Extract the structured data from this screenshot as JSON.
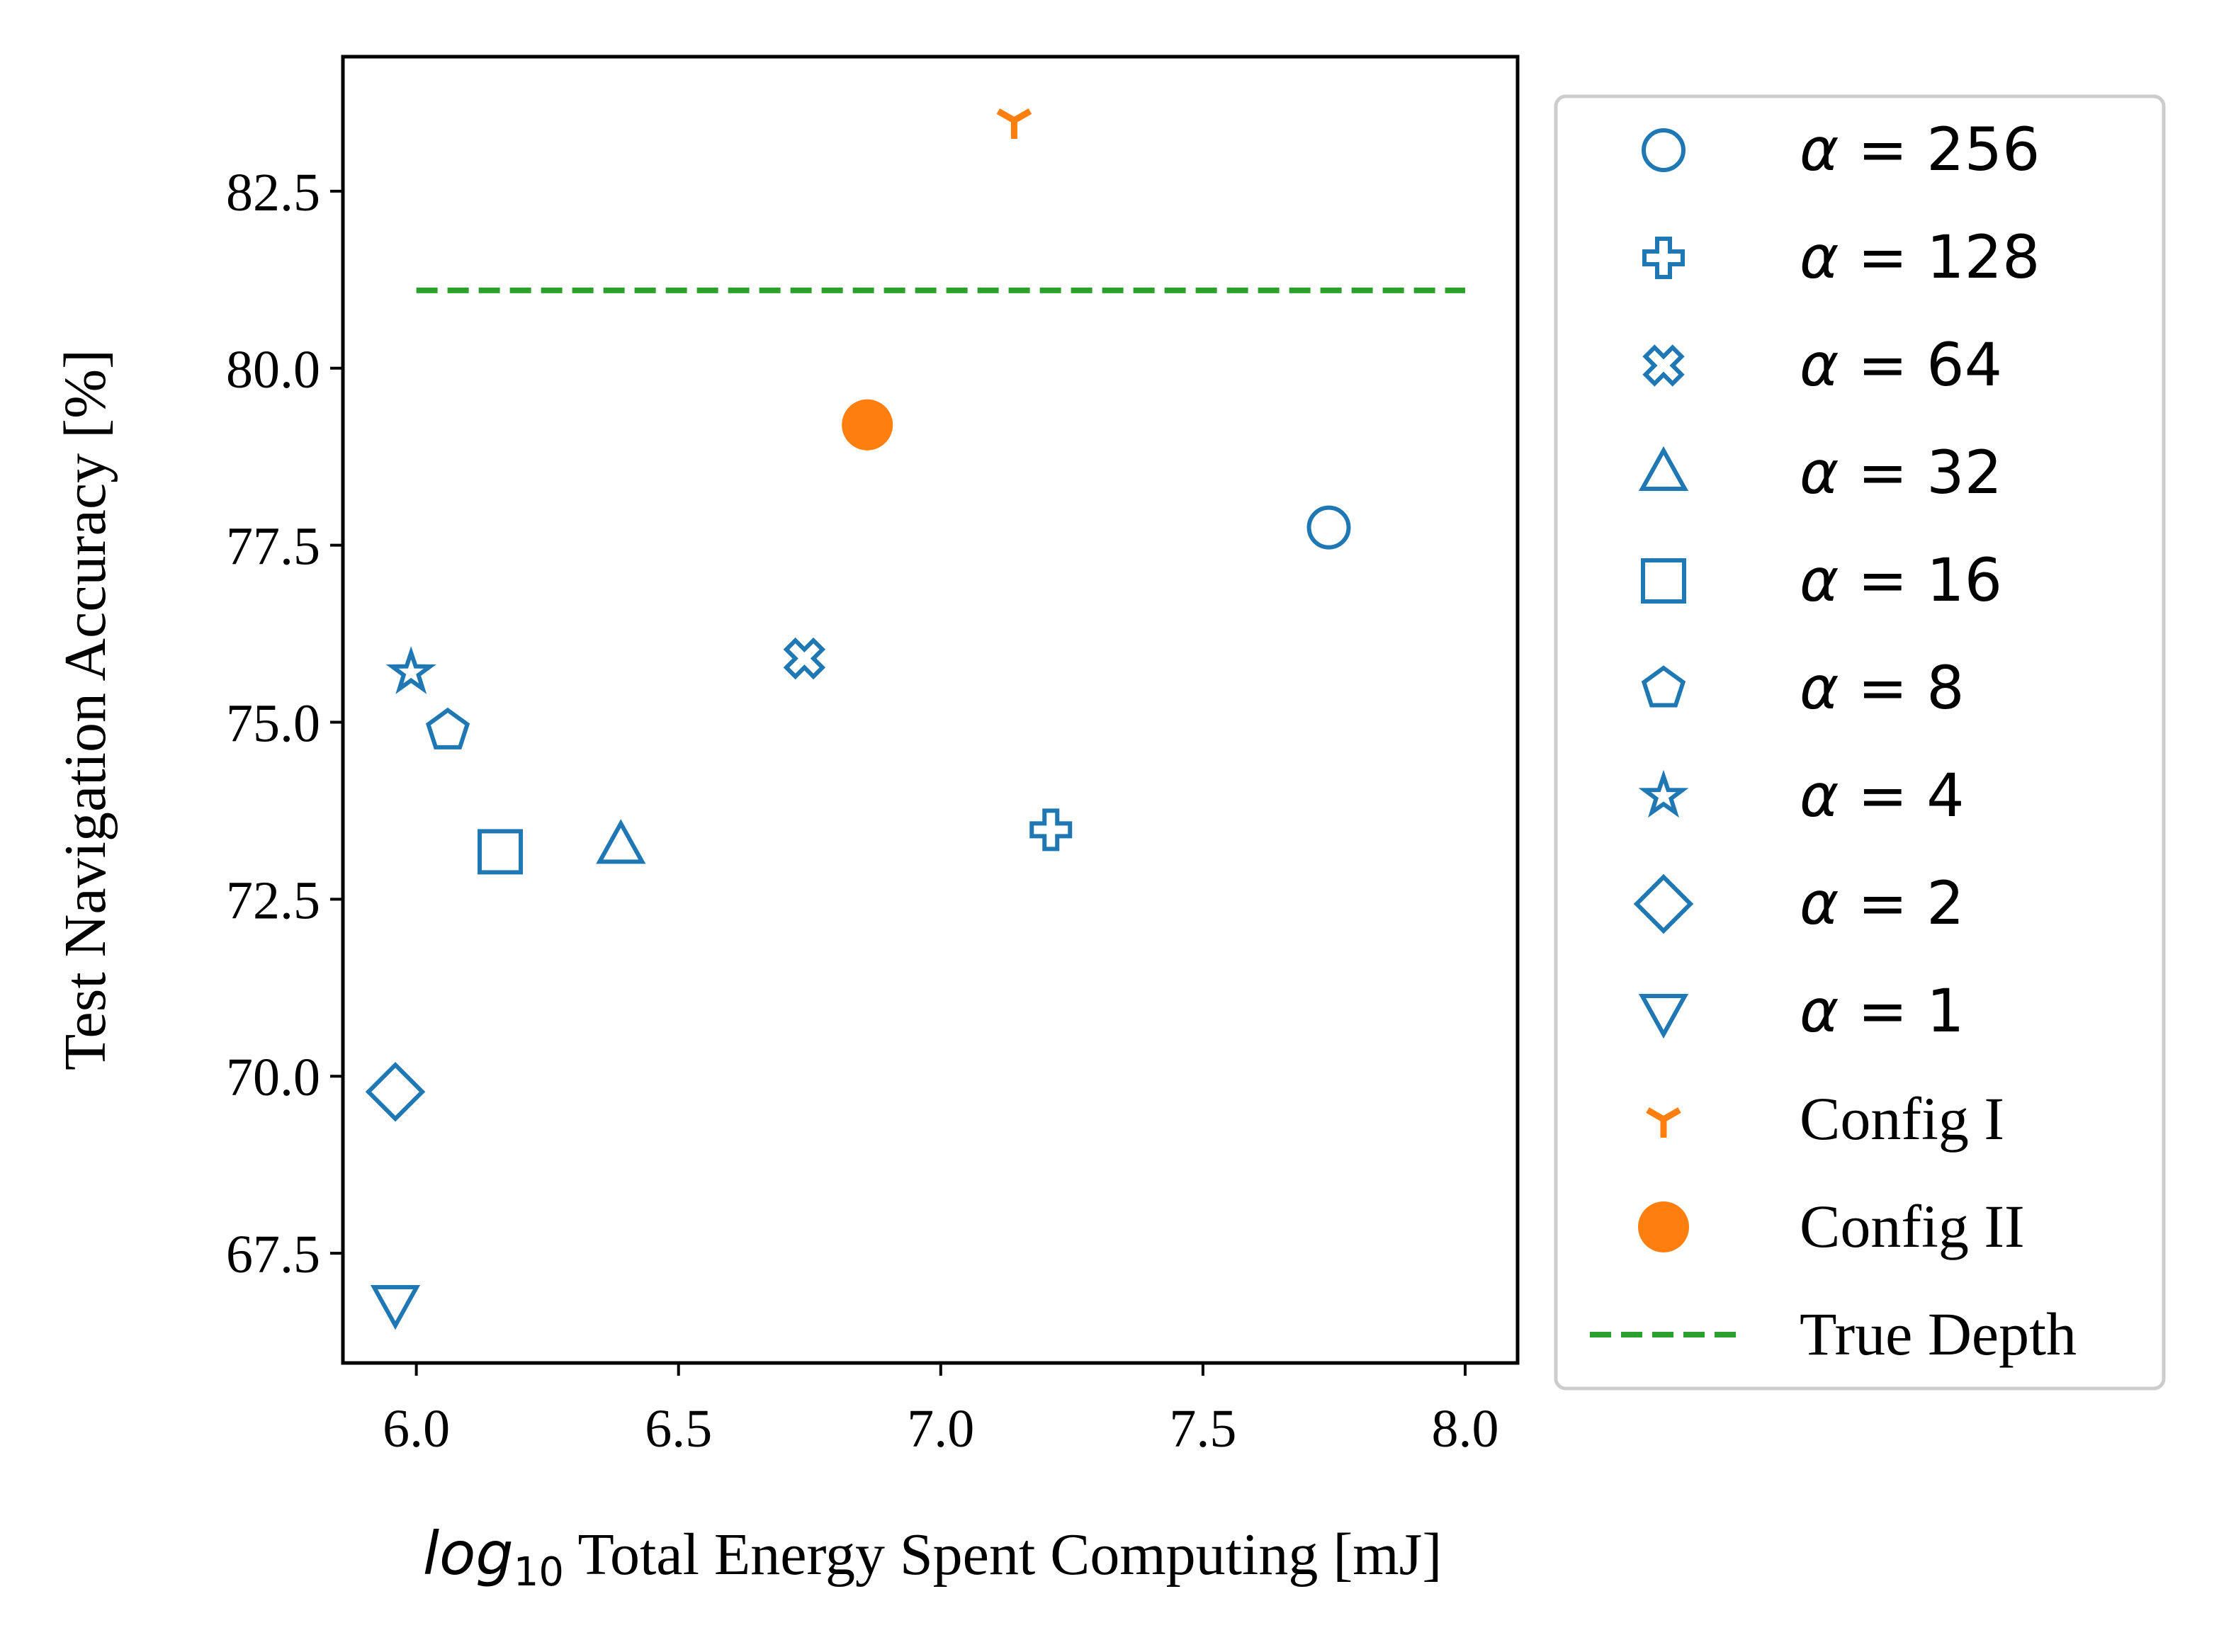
{
  "chart_data": {
    "type": "scatter",
    "xlabel_prefix": "log",
    "xlabel_subscript": "10",
    "xlabel_rest": " Total Energy Spent Computing [mJ]",
    "ylabel": "Test Navigation Accuracy [%]",
    "xlim": [
      5.86,
      8.1
    ],
    "ylim": [
      65.95,
      84.4
    ],
    "xticks": [
      6.0,
      6.5,
      7.0,
      7.5,
      8.0
    ],
    "xtick_labels": [
      "6.0",
      "6.5",
      "7.0",
      "7.5",
      "8.0"
    ],
    "yticks": [
      67.5,
      70.0,
      72.5,
      75.0,
      77.5,
      80.0,
      82.5
    ],
    "ytick_labels": [
      "67.5",
      "70.0",
      "72.5",
      "75.0",
      "77.5",
      "80.0",
      "82.5"
    ],
    "grid": false,
    "legend_position": "outside-right",
    "colors": {
      "blue": "#1f77b4",
      "orange": "#ff7f0e",
      "green": "#2ca02c"
    },
    "series": [
      {
        "name": "α = 256",
        "alpha": "256",
        "marker": "circle-icon",
        "color": "#1f77b4",
        "x": 7.74,
        "y": 77.75
      },
      {
        "name": "α = 128",
        "alpha": "128",
        "marker": "plus-icon",
        "color": "#1f77b4",
        "x": 7.21,
        "y": 73.48
      },
      {
        "name": "α = 64",
        "alpha": "64",
        "marker": "x-cross-icon",
        "color": "#1f77b4",
        "x": 6.74,
        "y": 75.9
      },
      {
        "name": "α = 32",
        "alpha": "32",
        "marker": "triangle-up-icon",
        "color": "#1f77b4",
        "x": 6.39,
        "y": 73.25
      },
      {
        "name": "α = 16",
        "alpha": "16",
        "marker": "square-icon",
        "color": "#1f77b4",
        "x": 6.16,
        "y": 73.17
      },
      {
        "name": "α = 8",
        "alpha": "8",
        "marker": "pentagon-icon",
        "color": "#1f77b4",
        "x": 6.06,
        "y": 74.88
      },
      {
        "name": "α = 4",
        "alpha": "4",
        "marker": "star-icon",
        "color": "#1f77b4",
        "x": 5.99,
        "y": 75.7
      },
      {
        "name": "α = 2",
        "alpha": "2",
        "marker": "diamond-icon",
        "color": "#1f77b4",
        "x": 5.96,
        "y": 69.78
      },
      {
        "name": "α = 1",
        "alpha": "1",
        "marker": "triangle-down-icon",
        "color": "#1f77b4",
        "x": 5.96,
        "y": 66.8
      },
      {
        "name": "Config I",
        "marker": "tri-down-icon",
        "color": "#ff7f0e",
        "x": 7.14,
        "y": 83.5
      },
      {
        "name": "Config II",
        "marker": "filled-circle-icon",
        "color": "#ff7f0e",
        "x": 6.86,
        "y": 79.2
      }
    ],
    "reference_line": {
      "name": "True Depth",
      "style": "dashed",
      "color": "#2ca02c",
      "x": [
        6.0,
        8.0
      ],
      "y": 81.1
    }
  }
}
